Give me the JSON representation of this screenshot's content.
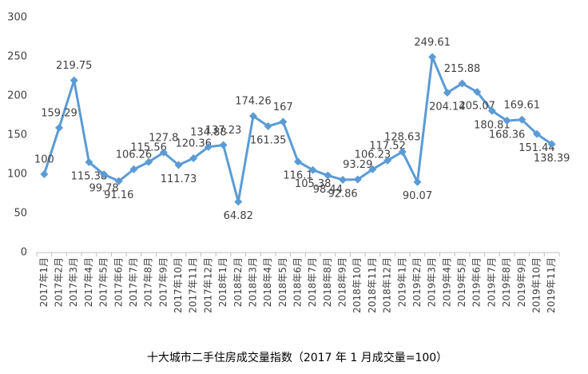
{
  "chart_data": {
    "type": "line",
    "title": "十大城市二手住房成交量指数（2017 年 1 月成交量=100）",
    "categories": [
      "2017年1月",
      "2017年2月",
      "2017年3月",
      "2017年4月",
      "2017年5月",
      "2017年6月",
      "2017年7月",
      "2017年8月",
      "2017年9月",
      "2017年10月",
      "2017年11月",
      "2017年12月",
      "2018年1月",
      "2018年2月",
      "2018年3月",
      "2018年4月",
      "2018年5月",
      "2018年6月",
      "2018年7月",
      "2018年8月",
      "2018年9月",
      "2018年10月",
      "2018年11月",
      "2018年12月",
      "2019年1月",
      "2019年2月",
      "2019年3月",
      "2019年4月",
      "2019年5月",
      "2019年6月",
      "2019年7月",
      "2019年8月",
      "2019年9月",
      "2019年10月",
      "2019年11月"
    ],
    "series": [
      {
        "color": "#5b9bd5",
        "values": [
          100,
          159.29,
          219.75,
          115.38,
          99.78,
          91.16,
          106.26,
          115.56,
          127.8,
          111.73,
          120.36,
          134.88,
          137.23,
          64.82,
          174.26,
          161.35,
          167,
          116.1,
          105.38,
          98.44,
          92.86,
          93.29,
          106.23,
          117.52,
          128.63,
          90.07,
          249.61,
          204.14,
          215.88,
          205.07,
          180.81,
          168.36,
          169.61,
          151.44,
          138.39
        ]
      }
    ],
    "ylim": [
      0,
      300
    ],
    "yticks": [
      0,
      50,
      100,
      150,
      200,
      250,
      300
    ],
    "grid": false
  }
}
